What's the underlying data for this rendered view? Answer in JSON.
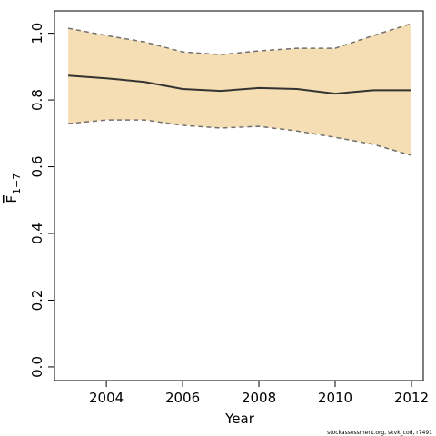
{
  "chart_data": {
    "type": "line",
    "xlabel": "Year",
    "ylabel": "F",
    "ylabel_sub": "1−7",
    "footnote": "stockassessment.org, skvk_cod, r7491",
    "x": [
      2003,
      2004,
      2005,
      2006,
      2007,
      2008,
      2009,
      2010,
      2011,
      2012
    ],
    "series": [
      {
        "color": "#333333",
        "values": [
          0.873,
          0.865,
          0.854,
          0.833,
          0.827,
          0.836,
          0.833,
          0.819,
          0.829,
          0.829
        ],
        "upper": [
          1.015,
          0.993,
          0.974,
          0.944,
          0.936,
          0.947,
          0.955,
          0.955,
          0.993,
          1.029
        ],
        "lower": [
          0.729,
          0.74,
          0.74,
          0.724,
          0.716,
          0.721,
          0.707,
          0.688,
          0.667,
          0.634
        ],
        "band_color": "#f5deb3",
        "bound_color": "#707070"
      }
    ],
    "xlim": [
      2002.64,
      2012.31
    ],
    "ylim": [
      -0.041,
      1.067
    ],
    "xticks": [
      2004,
      2006,
      2008,
      2010,
      2012
    ],
    "yticks": [
      {
        "value": 0,
        "label": "0.0"
      },
      0.2,
      0.4,
      0.6,
      0.8,
      {
        "value": 1,
        "label": "1.0"
      }
    ]
  }
}
